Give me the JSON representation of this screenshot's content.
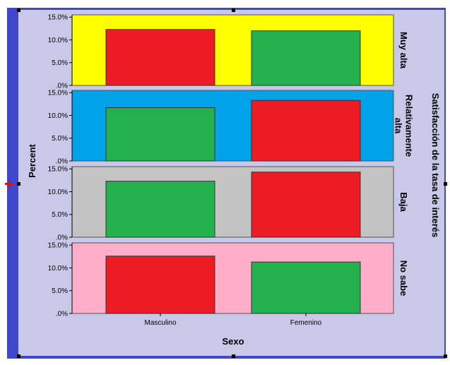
{
  "chart_data": {
    "type": "bar",
    "layout": "faceted-rows",
    "categories": [
      "Masculino",
      "Femenino"
    ],
    "xlabel": "Sexo",
    "ylabel": "Percent",
    "facet_title": "Satisfacción de la tasa de interés",
    "ylim": [
      0,
      15.5
    ],
    "yticks": [
      0,
      5,
      10,
      15
    ],
    "ytick_labels": [
      ".0%",
      "5.0%",
      "10.0%",
      "15.0%"
    ],
    "grid": false,
    "legend": "none",
    "panels": [
      {
        "label": "Muy alta",
        "background": "#ffff00",
        "values": [
          12.3,
          12.0
        ],
        "colors": [
          "#ed1c24",
          "#22b14c"
        ]
      },
      {
        "label": "Relativamente alta",
        "label_lines": [
          "Relativamente",
          "alta"
        ],
        "background": "#00a2e8",
        "values": [
          11.7,
          13.3
        ],
        "colors": [
          "#22b14c",
          "#ed1c24"
        ]
      },
      {
        "label": "Baja",
        "background": "#c3c3c3",
        "values": [
          12.3,
          14.3
        ],
        "colors": [
          "#22b14c",
          "#ed1c24"
        ]
      },
      {
        "label": "No sabe",
        "background": "#ffaec9",
        "values": [
          12.6,
          11.3
        ],
        "colors": [
          "#ed1c24",
          "#22b14c"
        ]
      }
    ]
  },
  "colors": {
    "outer_frame": "#3f48cc",
    "plot_background": "#c8c8e8",
    "handle": "#000000",
    "red_marker": "#ff0000"
  }
}
